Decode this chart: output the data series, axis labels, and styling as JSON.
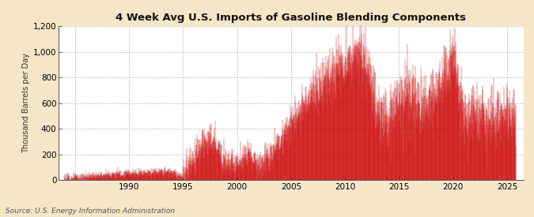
{
  "title": "4 Week Avg U.S. Imports of Gasoline Blending Components",
  "ylabel": "Thousand Barrels per Day",
  "source": "Source: U.S. Energy Information Administration",
  "fig_bg_color": "#f5e6c8",
  "plot_bg_color": "#ffffff",
  "line_color": "#cc0000",
  "grid_color": "#bbbbbb",
  "xlim_start": 1983.5,
  "xlim_end": 2026.5,
  "ylim": [
    0,
    1200
  ],
  "yticks": [
    0,
    200,
    400,
    600,
    800,
    1000,
    1200
  ],
  "xticks": [
    1985,
    1990,
    1995,
    2000,
    2005,
    2010,
    2015,
    2020,
    2025
  ],
  "xtick_labels": [
    "",
    "1990",
    "1995",
    "2000",
    "2005",
    "2010",
    "2015",
    "2020",
    "2025"
  ]
}
